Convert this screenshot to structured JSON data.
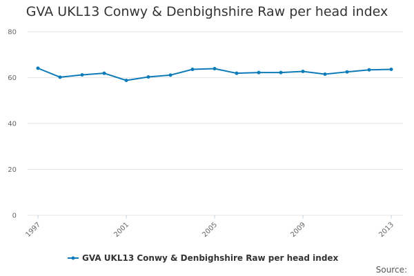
{
  "chart_data": {
    "type": "line",
    "title": "GVA UKL13 Conwy & Denbighshire Raw per head index",
    "x": [
      1997,
      1998,
      1999,
      2000,
      2001,
      2002,
      2003,
      2004,
      2005,
      2006,
      2007,
      2008,
      2009,
      2010,
      2011,
      2012,
      2013
    ],
    "x_tick_labels": [
      "1997",
      "2001",
      "2005",
      "2009",
      "2013"
    ],
    "series": [
      {
        "name": "GVA UKL13 Conwy & Denbighshire Raw per head index",
        "color": "#0a7ab8",
        "values": [
          64.1,
          60.2,
          61.2,
          61.9,
          58.8,
          60.3,
          61.1,
          63.6,
          63.9,
          61.9,
          62.2,
          62.2,
          62.7,
          61.5,
          62.5,
          63.4,
          63.6
        ]
      }
    ],
    "ylim": [
      0,
      80
    ],
    "y_ticks": [
      0,
      20,
      40,
      60,
      80
    ],
    "xlabel": "",
    "ylabel": "",
    "grid": true,
    "legend_position": "bottom"
  },
  "credit": "Source:"
}
